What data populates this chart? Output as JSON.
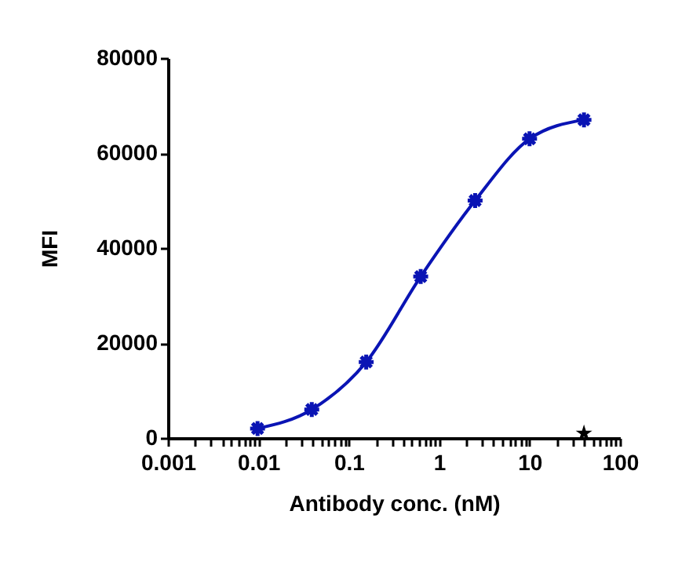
{
  "chart_data": {
    "type": "line",
    "xlabel": "Antibody conc. (nM)",
    "ylabel": "MFI",
    "log": "x",
    "grid": false,
    "xlim": [
      0.001,
      100
    ],
    "xticks": [
      0.001,
      {
        "value": 0.002,
        "label": null
      },
      {
        "value": 0.003,
        "label": null
      },
      {
        "value": 0.004,
        "label": null
      },
      {
        "value": 0.005,
        "label": null
      },
      {
        "value": 0.006,
        "label": null
      },
      {
        "value": 0.007,
        "label": null
      },
      {
        "value": 0.008,
        "label": null
      },
      {
        "value": 0.009,
        "label": null
      },
      0.01,
      {
        "value": 0.02,
        "label": null
      },
      {
        "value": 0.03,
        "label": null
      },
      {
        "value": 0.04,
        "label": null
      },
      {
        "value": 0.05,
        "label": null
      },
      {
        "value": 0.06,
        "label": null
      },
      {
        "value": 0.07,
        "label": null
      },
      {
        "value": 0.08,
        "label": null
      },
      {
        "value": 0.09,
        "label": null
      },
      0.1,
      {
        "value": 0.2,
        "label": null
      },
      {
        "value": 0.3,
        "label": null
      },
      {
        "value": 0.4,
        "label": null
      },
      {
        "value": 0.5,
        "label": null
      },
      {
        "value": 0.6,
        "label": null
      },
      {
        "value": 0.7,
        "label": null
      },
      {
        "value": 0.8,
        "label": null
      },
      {
        "value": 0.9,
        "label": null
      },
      1,
      {
        "value": 2,
        "label": null
      },
      {
        "value": 3,
        "label": null
      },
      {
        "value": 4,
        "label": null
      },
      {
        "value": 5,
        "label": null
      },
      {
        "value": 6,
        "label": null
      },
      {
        "value": 7,
        "label": null
      },
      {
        "value": 8,
        "label": null
      },
      {
        "value": 9,
        "label": null
      },
      10,
      {
        "value": 20,
        "label": null
      },
      {
        "value": 30,
        "label": null
      },
      {
        "value": 40,
        "label": null
      },
      {
        "value": 50,
        "label": null
      },
      {
        "value": 60,
        "label": null
      },
      {
        "value": 70,
        "label": null
      },
      {
        "value": 80,
        "label": null
      },
      {
        "value": 90,
        "label": null
      },
      100
    ],
    "ylim": [
      0,
      80000
    ],
    "yticks": [
      0,
      20000,
      40000,
      60000,
      80000
    ],
    "series": [
      {
        "type": "line",
        "marker": "cross",
        "color": "#0a14b4",
        "x": [
          0.0098,
          0.039,
          0.156,
          0.625,
          2.5,
          10,
          40
        ],
        "values": [
          2000,
          6000,
          16000,
          34000,
          50000,
          63000,
          67000
        ]
      },
      {
        "type": "scatter",
        "marker": "star",
        "color": "#000000",
        "x": [
          40
        ],
        "values": [
          1000
        ]
      }
    ]
  }
}
